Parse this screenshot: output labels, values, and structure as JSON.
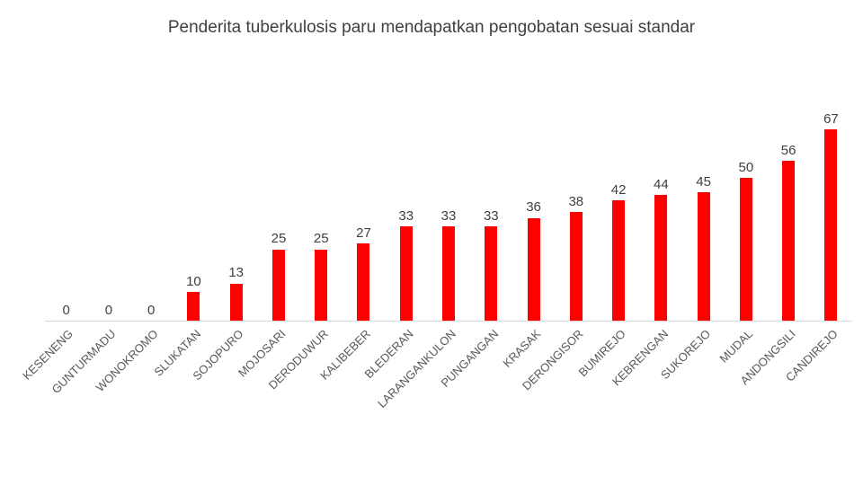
{
  "chart_data": {
    "type": "bar",
    "title": "Penderita tuberkulosis paru mendapatkan pengobatan sesuai standar",
    "categories": [
      "KESENENG",
      "GUNTURMADU",
      "WONOKROMO",
      "SLUKATAN",
      "SOJOPURO",
      "MOJOSARI",
      "DERODUWUR",
      "KALIBEBER",
      "BLEDERAN",
      "LARANGANKULON",
      "PUNGANGAN",
      "KRASAK",
      "DERONGISOR",
      "BUMIREJO",
      "KEBRENGAN",
      "SUKOREJO",
      "MUDAL",
      "ANDONGSILI",
      "CANDIREJO"
    ],
    "values": [
      0,
      0,
      0,
      10,
      13,
      25,
      25,
      27,
      33,
      33,
      33,
      36,
      38,
      42,
      44,
      45,
      50,
      56,
      67
    ],
    "xlabel": "",
    "ylabel": "",
    "ylim": [
      0,
      67
    ],
    "grid": false,
    "legend": false,
    "value_labels_shown": true,
    "category_label_rotation_deg": 45
  },
  "colors": {
    "bar": "#ff0000",
    "value_label": "#404040",
    "category_label": "#595959",
    "title": "#404040",
    "axis_line": "#d9d9d9",
    "background": "#ffffff"
  }
}
